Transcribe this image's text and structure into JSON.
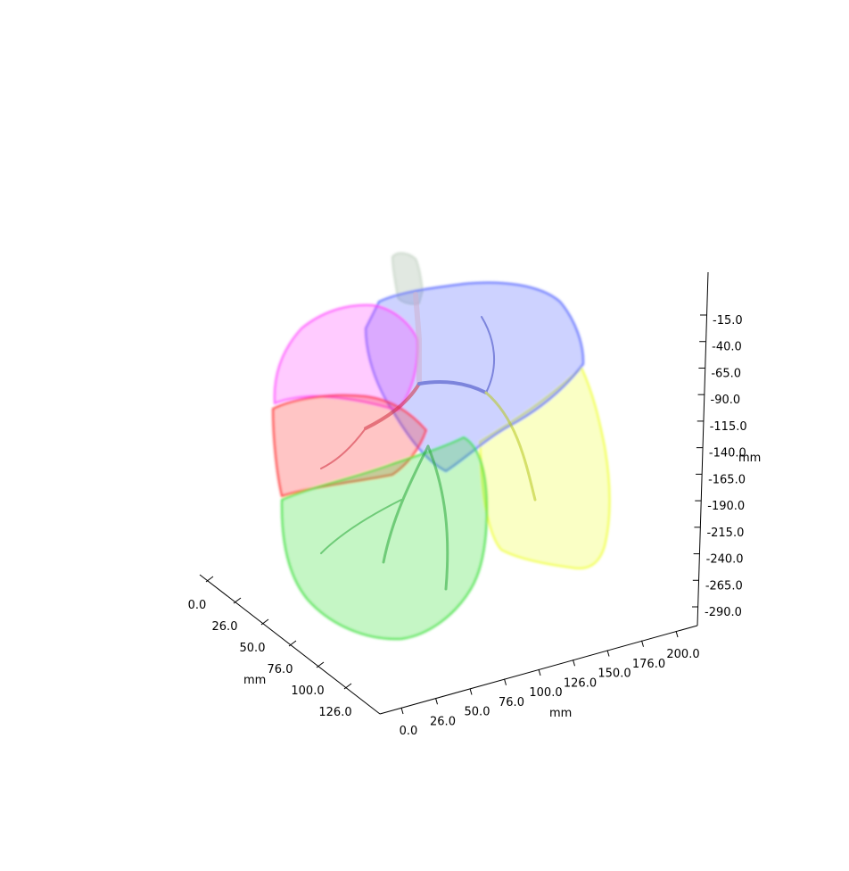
{
  "plot": {
    "x_axis": {
      "label": "mm",
      "ticks": [
        "0.0",
        "26.0",
        "50.0",
        "76.0",
        "100.0",
        "126.0"
      ]
    },
    "y_axis": {
      "label": "mm",
      "ticks": [
        "0.0",
        "26.0",
        "50.0",
        "76.0",
        "100.0",
        "126.0",
        "150.0",
        "176.0",
        "200.0"
      ]
    },
    "z_axis": {
      "label": "mm",
      "ticks": [
        "-15.0",
        "-40.0",
        "-65.0",
        "-90.0",
        "-115.0",
        "-140.0",
        "-165.0",
        "-190.0",
        "-215.0",
        "-240.0",
        "-265.0",
        "-290.0"
      ]
    },
    "lobes": [
      {
        "key": "right-upper-lobe",
        "color": "#ff44ff"
      },
      {
        "key": "right-middle-lobe",
        "color": "#ff2a2a"
      },
      {
        "key": "right-lower-lobe",
        "color": "#33dd33"
      },
      {
        "key": "left-upper-lobe",
        "color": "#4a5cff"
      },
      {
        "key": "left-lower-lobe",
        "color": "#eeff33"
      },
      {
        "key": "trachea",
        "color": "#c8d6c8"
      }
    ]
  }
}
